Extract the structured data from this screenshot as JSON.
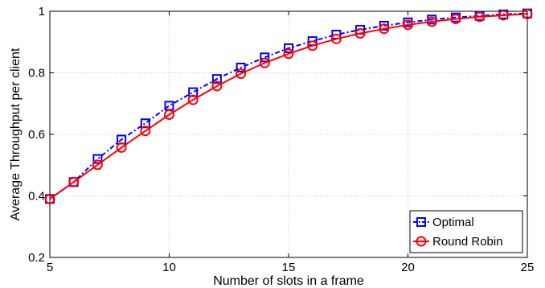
{
  "chart_data": {
    "type": "line",
    "title": "",
    "xlabel": "Number of slots in a frame",
    "ylabel": "Average Throughput per client",
    "xlim": [
      5,
      25
    ],
    "ylim": [
      0.2,
      1
    ],
    "xticks": [
      5,
      10,
      15,
      20,
      25
    ],
    "yticks": [
      0.2,
      0.4,
      0.6,
      0.8,
      1
    ],
    "xtick_labels": [
      "5",
      "10",
      "15",
      "20",
      "25"
    ],
    "ytick_labels": [
      "0.2",
      "0.4",
      "0.6",
      "0.8",
      "1"
    ],
    "grid": true,
    "legend_position": "bottom-right",
    "x": [
      5,
      6,
      7,
      8,
      9,
      10,
      11,
      12,
      13,
      14,
      15,
      16,
      17,
      18,
      19,
      20,
      21,
      22,
      23,
      24,
      25
    ],
    "series": [
      {
        "name": "Optimal",
        "color": "#0000ff",
        "line_style": "dash-dot",
        "marker": "square",
        "values": [
          0.39,
          0.445,
          0.52,
          0.583,
          0.636,
          0.693,
          0.737,
          0.78,
          0.817,
          0.85,
          0.88,
          0.903,
          0.924,
          0.94,
          0.953,
          0.964,
          0.973,
          0.98,
          0.985,
          0.99,
          0.993
        ]
      },
      {
        "name": "Round Robin",
        "color": "#ff0000",
        "line_style": "solid",
        "marker": "circle",
        "values": [
          0.39,
          0.445,
          0.501,
          0.557,
          0.611,
          0.664,
          0.712,
          0.757,
          0.797,
          0.832,
          0.862,
          0.888,
          0.91,
          0.928,
          0.943,
          0.956,
          0.966,
          0.975,
          0.982,
          0.987,
          0.991
        ]
      }
    ]
  }
}
